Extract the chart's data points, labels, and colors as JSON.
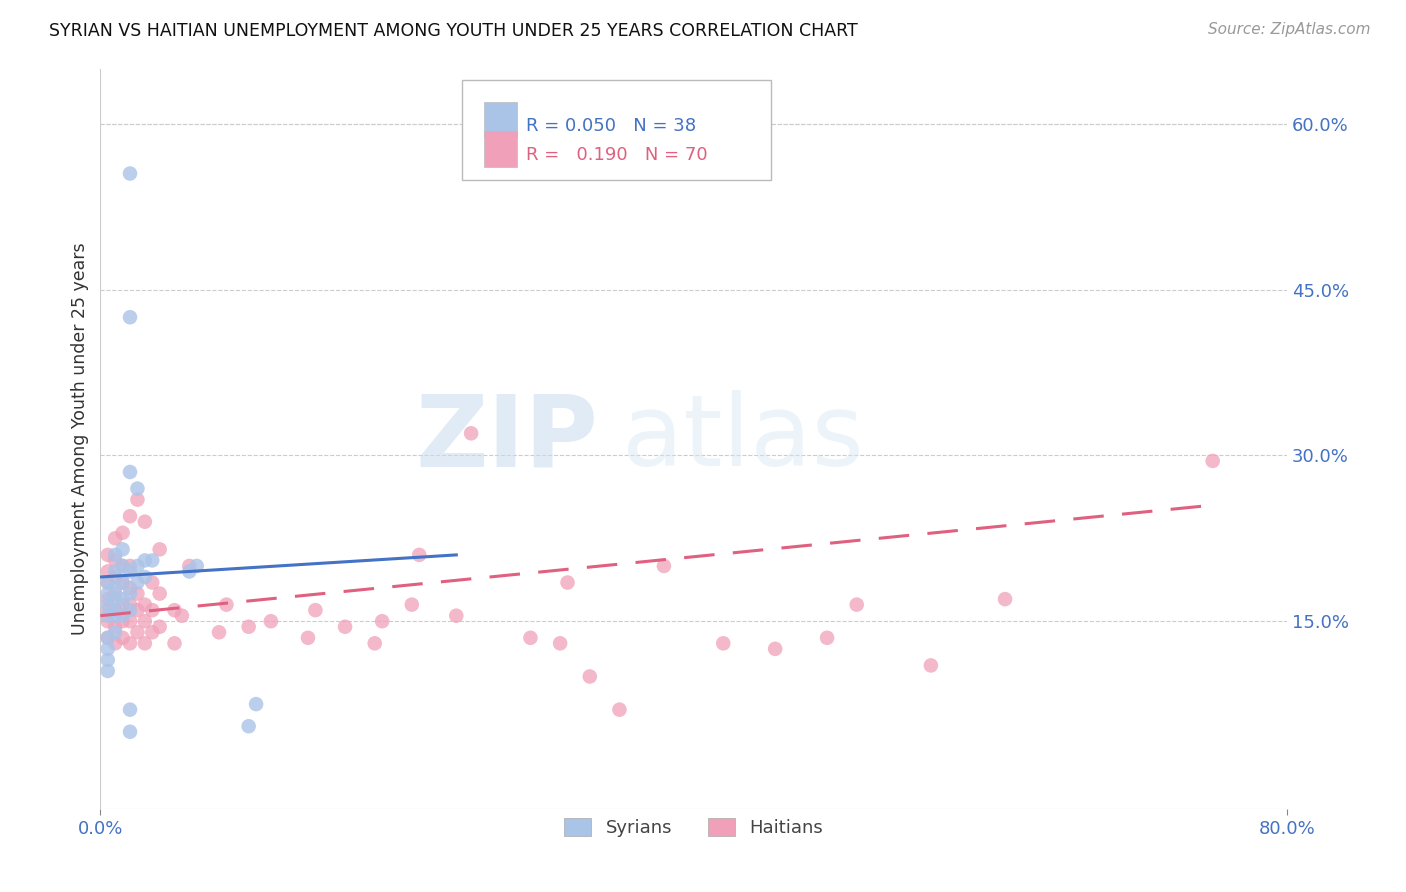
{
  "title": "SYRIAN VS HAITIAN UNEMPLOYMENT AMONG YOUTH UNDER 25 YEARS CORRELATION CHART",
  "source": "Source: ZipAtlas.com",
  "ylabel": "Unemployment Among Youth under 25 years",
  "xlim": [
    0.0,
    0.8
  ],
  "ylim": [
    -0.02,
    0.65
  ],
  "y_ticks_right": [
    0.15,
    0.3,
    0.45,
    0.6
  ],
  "y_tick_labels_right": [
    "15.0%",
    "30.0%",
    "45.0%",
    "60.0%"
  ],
  "legend_syrian_r": "0.050",
  "legend_syrian_n": "38",
  "legend_haitian_r": "0.190",
  "legend_haitian_n": "70",
  "syrian_color": "#aac4e8",
  "haitian_color": "#f0a0b8",
  "syrian_line_color": "#4472c4",
  "haitian_line_color": "#e06080",
  "background_color": "#ffffff",
  "grid_color": "#cccccc",
  "axis_label_color": "#4472c4",
  "syrian_points_x": [
    0.005,
    0.005,
    0.005,
    0.005,
    0.005,
    0.005,
    0.005,
    0.005,
    0.01,
    0.01,
    0.01,
    0.01,
    0.01,
    0.01,
    0.01,
    0.015,
    0.015,
    0.015,
    0.015,
    0.015,
    0.02,
    0.02,
    0.02,
    0.02,
    0.025,
    0.025,
    0.025,
    0.03,
    0.03,
    0.035,
    0.06,
    0.065,
    0.02,
    0.02,
    0.1,
    0.105,
    0.02,
    0.02
  ],
  "syrian_points_y": [
    0.105,
    0.115,
    0.125,
    0.135,
    0.155,
    0.165,
    0.175,
    0.185,
    0.14,
    0.155,
    0.16,
    0.17,
    0.18,
    0.195,
    0.21,
    0.155,
    0.17,
    0.185,
    0.2,
    0.215,
    0.16,
    0.175,
    0.195,
    0.285,
    0.185,
    0.2,
    0.27,
    0.19,
    0.205,
    0.205,
    0.195,
    0.2,
    0.05,
    0.07,
    0.055,
    0.075,
    0.425,
    0.555
  ],
  "haitian_points_x": [
    0.005,
    0.005,
    0.005,
    0.005,
    0.005,
    0.005,
    0.005,
    0.01,
    0.01,
    0.01,
    0.01,
    0.01,
    0.01,
    0.01,
    0.015,
    0.015,
    0.015,
    0.015,
    0.015,
    0.015,
    0.02,
    0.02,
    0.02,
    0.02,
    0.02,
    0.02,
    0.025,
    0.025,
    0.025,
    0.025,
    0.03,
    0.03,
    0.03,
    0.03,
    0.035,
    0.035,
    0.035,
    0.04,
    0.04,
    0.04,
    0.05,
    0.05,
    0.055,
    0.06,
    0.08,
    0.085,
    0.1,
    0.115,
    0.14,
    0.145,
    0.165,
    0.185,
    0.19,
    0.21,
    0.215,
    0.24,
    0.25,
    0.29,
    0.31,
    0.315,
    0.33,
    0.35,
    0.38,
    0.42,
    0.455,
    0.49,
    0.51,
    0.56,
    0.61,
    0.75
  ],
  "haitian_points_y": [
    0.135,
    0.15,
    0.16,
    0.17,
    0.185,
    0.195,
    0.21,
    0.13,
    0.145,
    0.16,
    0.175,
    0.19,
    0.205,
    0.225,
    0.135,
    0.15,
    0.165,
    0.185,
    0.2,
    0.23,
    0.13,
    0.15,
    0.165,
    0.18,
    0.2,
    0.245,
    0.14,
    0.16,
    0.175,
    0.26,
    0.13,
    0.15,
    0.165,
    0.24,
    0.14,
    0.16,
    0.185,
    0.145,
    0.175,
    0.215,
    0.13,
    0.16,
    0.155,
    0.2,
    0.14,
    0.165,
    0.145,
    0.15,
    0.135,
    0.16,
    0.145,
    0.13,
    0.15,
    0.165,
    0.21,
    0.155,
    0.32,
    0.135,
    0.13,
    0.185,
    0.1,
    0.07,
    0.2,
    0.13,
    0.125,
    0.135,
    0.165,
    0.11,
    0.17,
    0.295
  ],
  "syrian_trend_x": [
    0.0,
    0.24
  ],
  "syrian_trend_y": [
    0.19,
    0.21
  ],
  "haitian_trend_x": [
    0.0,
    0.75
  ],
  "haitian_trend_y": [
    0.155,
    0.255
  ]
}
